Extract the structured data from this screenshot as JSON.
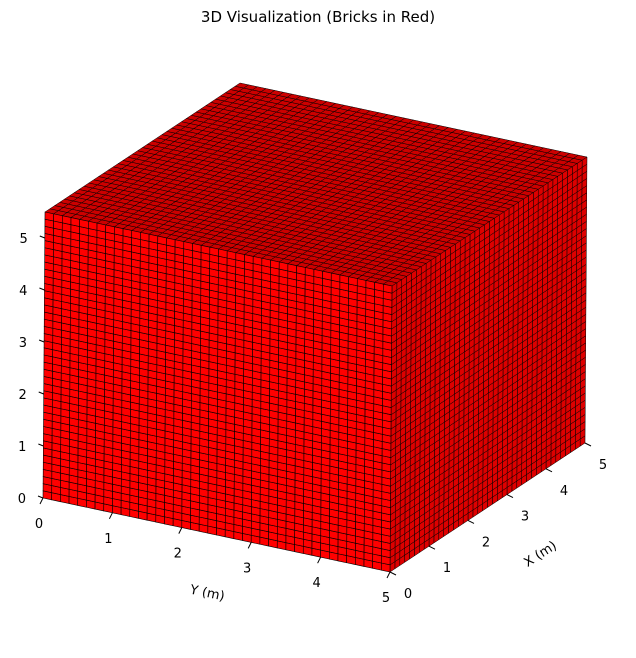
{
  "chart_data": {
    "type": "3d-bar",
    "title": "3D Visualization (Bricks in Red)",
    "xlabel": "X (m)",
    "ylabel": "Y (m)",
    "zlabel": "",
    "xlim": [
      0,
      5
    ],
    "ylim": [
      0,
      5
    ],
    "zlim": [
      0,
      5.5
    ],
    "xticks": [
      "0",
      "1",
      "2",
      "3",
      "4",
      "5"
    ],
    "yticks": [
      "0",
      "1",
      "2",
      "3",
      "4",
      "5"
    ],
    "zticks": [
      "0",
      "1",
      "2",
      "3",
      "4",
      "5"
    ],
    "brick_color": "#ff0000",
    "edge_color": "#000000",
    "pane_color": "#f2f2f2",
    "grid": true,
    "bricks": {
      "x_count": 40,
      "y_count": 40,
      "z_count": 40,
      "x_range": [
        0,
        5
      ],
      "y_range": [
        0,
        5
      ],
      "z_range": [
        0,
        5.5
      ]
    }
  }
}
